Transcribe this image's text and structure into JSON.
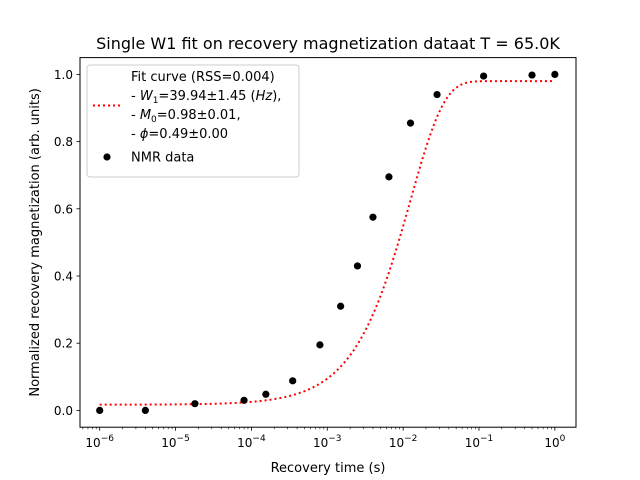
{
  "chart_data": {
    "type": "scatter",
    "title": "Single W1 fit on recovery magnetization dataat T = 65.0K",
    "xlabel": "Recovery time (s)",
    "ylabel": "Normalized recovery magnetization (arb. units)",
    "x_scale": "log",
    "xlim": [
      5.5e-07,
      1.9
    ],
    "ylim": [
      -0.05,
      1.05
    ],
    "x_ticks": [
      {
        "value": 1e-06,
        "base": "10",
        "exp": "−6"
      },
      {
        "value": 1e-05,
        "base": "10",
        "exp": "−5"
      },
      {
        "value": 0.0001,
        "base": "10",
        "exp": "−4"
      },
      {
        "value": 0.001,
        "base": "10",
        "exp": "−3"
      },
      {
        "value": 0.01,
        "base": "10",
        "exp": "−2"
      },
      {
        "value": 0.1,
        "base": "10",
        "exp": "−1"
      },
      {
        "value": 1,
        "base": "10",
        "exp": "0"
      }
    ],
    "y_ticks": [
      {
        "value": 0.0,
        "label": "0.0"
      },
      {
        "value": 0.2,
        "label": "0.2"
      },
      {
        "value": 0.4,
        "label": "0.4"
      },
      {
        "value": 0.6,
        "label": "0.6"
      },
      {
        "value": 0.8,
        "label": "0.8"
      },
      {
        "value": 1.0,
        "label": "1.0"
      }
    ],
    "grid": false,
    "legend_position": "upper-left",
    "fit": {
      "M0": 0.98,
      "W1": 39.94,
      "phi": 0.49,
      "offset": 0.017,
      "color": "#ff0000",
      "style": "dotted"
    },
    "series": [
      {
        "name": "NMR data",
        "color": "#000000",
        "x": [
          1e-06,
          4e-06,
          1.8e-05,
          8e-05,
          0.000155,
          0.00035,
          0.0008,
          0.0015,
          0.0025,
          0.004,
          0.0065,
          0.0125,
          0.028,
          0.115,
          0.5,
          1.0
        ],
        "y": [
          0.0,
          0.0,
          0.02,
          0.03,
          0.048,
          0.088,
          0.195,
          0.31,
          0.43,
          0.575,
          0.695,
          0.855,
          0.94,
          0.995,
          0.998,
          1.0
        ]
      }
    ],
    "legend": {
      "fit_lines": [
        {
          "plain": "Fit curve (RSS=0.004)"
        },
        {
          "pre": "- ",
          "italic": "W",
          "sub": "1",
          "post": "=39.94±1.45 (",
          "italic2": "Hz",
          "post2": "),"
        },
        {
          "pre": "- ",
          "italic": "M",
          "sub": "0",
          "post": "=0.98±0.01,"
        },
        {
          "pre": "- ",
          "italic": "ϕ",
          "post": "=0.49±0.00"
        }
      ],
      "data_label": "NMR data"
    }
  }
}
